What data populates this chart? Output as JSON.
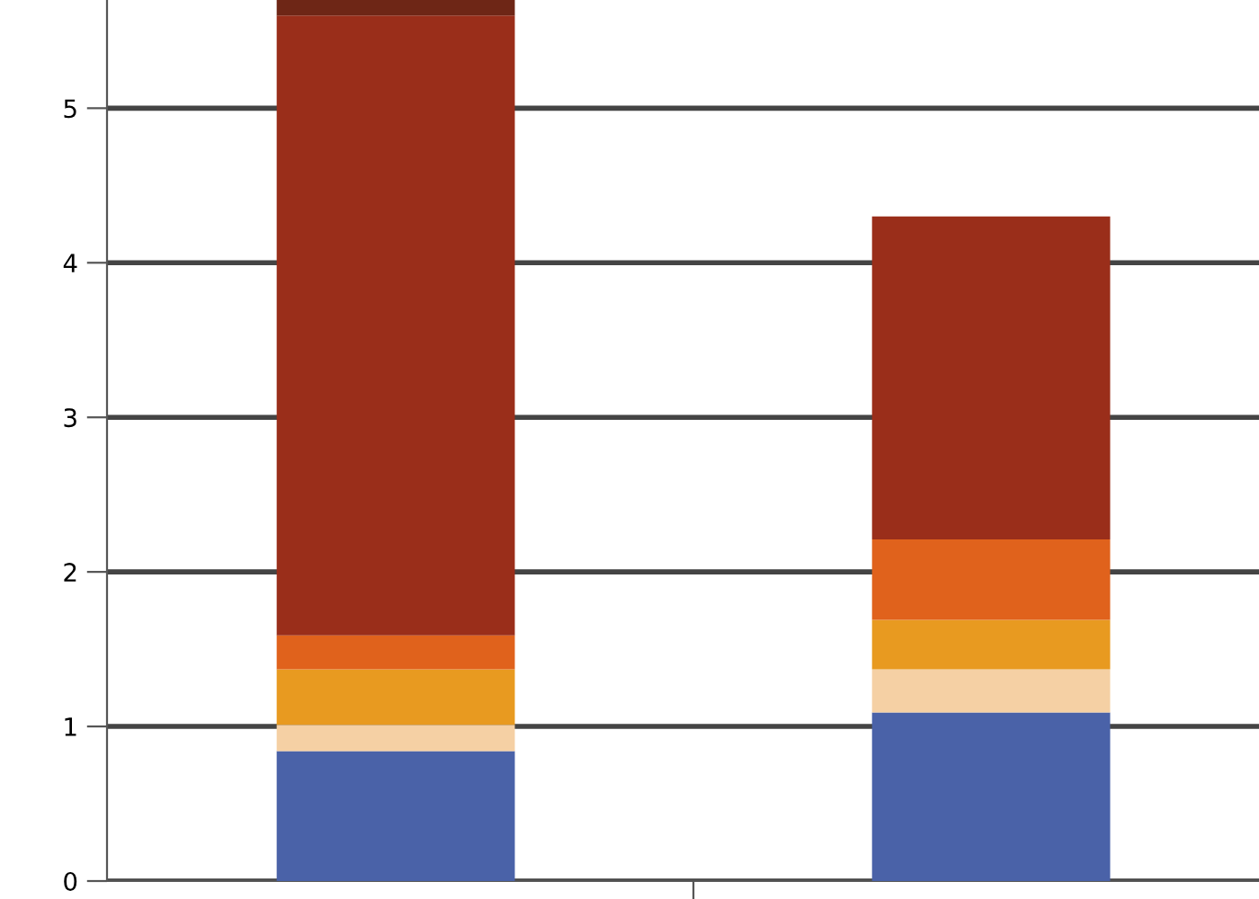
{
  "chart_data": {
    "type": "bar",
    "stacked": true,
    "categories": [
      null,
      null
    ],
    "series": [
      {
        "color": "#4a62a8",
        "values": [
          0.84,
          1.09
        ]
      },
      {
        "color": "#f5d0a4",
        "values": [
          0.17,
          0.28
        ]
      },
      {
        "color": "#e89a20",
        "values": [
          0.36,
          0.32
        ]
      },
      {
        "color": "#e0621c",
        "values": [
          0.22,
          0.52
        ]
      },
      {
        "color": "#9a2e1a",
        "values": [
          4.01,
          2.09
        ]
      },
      {
        "color": "#6e2616",
        "values": [
          0.1,
          0
        ]
      }
    ],
    "ylim": [
      0,
      5.7
    ],
    "yticks": [
      0,
      1,
      2,
      3,
      4,
      5
    ],
    "grid": "y"
  }
}
